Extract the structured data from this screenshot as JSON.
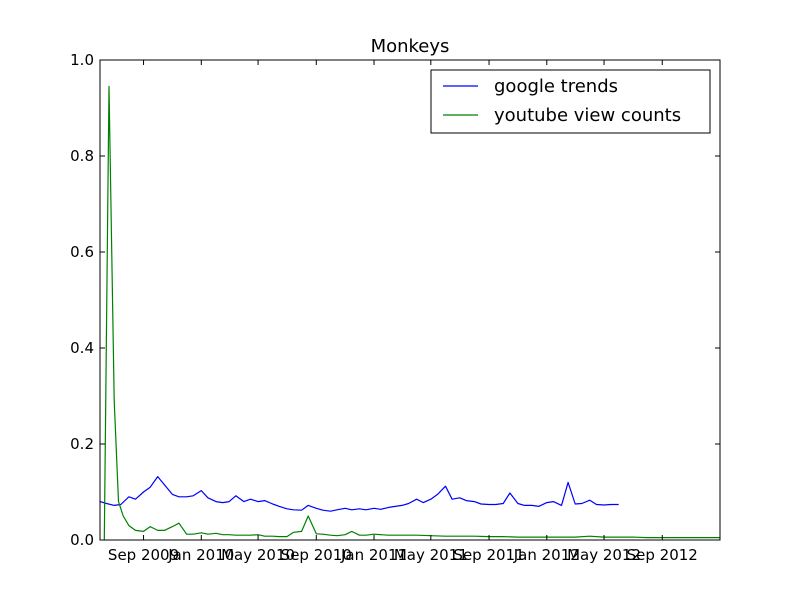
{
  "chart_data": {
    "type": "line",
    "title": "Monkeys",
    "xlabel": "",
    "ylabel": "",
    "x_axis_type": "date",
    "xlim": [
      "2009-06-01",
      "2013-01-01"
    ],
    "ylim": [
      0.0,
      1.0
    ],
    "grid": false,
    "legend_position": "top-right",
    "y_ticks": [
      0.0,
      0.2,
      0.4,
      0.6,
      0.8,
      1.0
    ],
    "y_tick_labels": [
      "0.0",
      "0.2",
      "0.4",
      "0.6",
      "0.8",
      "1.0"
    ],
    "x_ticks": [
      "2009-09-01",
      "2010-01-01",
      "2010-05-01",
      "2010-09-01",
      "2011-01-01",
      "2011-05-01",
      "2011-09-01",
      "2012-01-01",
      "2012-05-01",
      "2012-09-01"
    ],
    "x_tick_labels": [
      "Sep 2009",
      "Jan 2010",
      "May 2010",
      "Sep 2010",
      "Jan 2011",
      "May 2011",
      "Sep 2011",
      "Jan 2012",
      "May 2012",
      "Sep 2012"
    ],
    "series": [
      {
        "name": "google trends",
        "color": "#0000ff",
        "x": [
          "2009-06-01",
          "2009-06-15",
          "2009-07-01",
          "2009-07-15",
          "2009-08-01",
          "2009-08-15",
          "2009-09-01",
          "2009-09-15",
          "2009-10-01",
          "2009-10-15",
          "2009-11-01",
          "2009-11-15",
          "2009-12-01",
          "2009-12-15",
          "2010-01-01",
          "2010-01-15",
          "2010-02-01",
          "2010-02-15",
          "2010-03-01",
          "2010-03-15",
          "2010-04-01",
          "2010-04-15",
          "2010-05-01",
          "2010-05-15",
          "2010-06-01",
          "2010-06-15",
          "2010-07-01",
          "2010-07-15",
          "2010-08-01",
          "2010-08-15",
          "2010-09-01",
          "2010-09-15",
          "2010-10-01",
          "2010-10-15",
          "2010-11-01",
          "2010-11-15",
          "2010-12-01",
          "2010-12-15",
          "2011-01-01",
          "2011-01-15",
          "2011-02-01",
          "2011-02-15",
          "2011-03-01",
          "2011-03-15",
          "2011-04-01",
          "2011-04-15",
          "2011-05-01",
          "2011-05-15",
          "2011-06-01",
          "2011-06-15",
          "2011-07-01",
          "2011-07-15",
          "2011-08-01",
          "2011-08-15",
          "2011-09-01",
          "2011-09-15",
          "2011-10-01",
          "2011-10-15",
          "2011-11-01",
          "2011-11-15",
          "2011-12-01",
          "2011-12-15",
          "2012-01-01",
          "2012-01-15",
          "2012-02-01",
          "2012-02-15",
          "2012-03-01",
          "2012-03-15",
          "2012-04-01",
          "2012-04-15",
          "2012-05-01",
          "2012-05-15",
          "2012-06-01"
        ],
        "values": [
          0.08,
          0.076,
          0.072,
          0.074,
          0.09,
          0.085,
          0.1,
          0.11,
          0.132,
          0.115,
          0.095,
          0.09,
          0.09,
          0.092,
          0.103,
          0.088,
          0.08,
          0.078,
          0.08,
          0.092,
          0.08,
          0.085,
          0.08,
          0.082,
          0.075,
          0.07,
          0.065,
          0.063,
          0.062,
          0.072,
          0.066,
          0.062,
          0.06,
          0.063,
          0.066,
          0.063,
          0.065,
          0.063,
          0.066,
          0.064,
          0.068,
          0.07,
          0.072,
          0.076,
          0.085,
          0.078,
          0.085,
          0.095,
          0.112,
          0.085,
          0.088,
          0.082,
          0.08,
          0.075,
          0.074,
          0.074,
          0.076,
          0.098,
          0.076,
          0.072,
          0.072,
          0.07,
          0.078,
          0.08,
          0.072,
          0.12,
          0.075,
          0.076,
          0.083,
          0.074,
          0.073,
          0.074,
          0.074
        ]
      },
      {
        "name": "youtube view counts",
        "color": "#008000",
        "x": [
          "2009-06-10",
          "2009-06-20",
          "2009-07-01",
          "2009-07-10",
          "2009-07-20",
          "2009-08-01",
          "2009-08-15",
          "2009-09-01",
          "2009-09-15",
          "2009-10-01",
          "2009-10-15",
          "2009-11-01",
          "2009-11-15",
          "2009-12-01",
          "2009-12-15",
          "2010-01-01",
          "2010-01-15",
          "2010-02-01",
          "2010-02-15",
          "2010-03-01",
          "2010-03-15",
          "2010-04-01",
          "2010-04-15",
          "2010-05-01",
          "2010-05-15",
          "2010-06-01",
          "2010-06-15",
          "2010-07-01",
          "2010-07-15",
          "2010-08-01",
          "2010-08-15",
          "2010-09-01",
          "2010-09-15",
          "2010-10-01",
          "2010-10-15",
          "2010-11-01",
          "2010-11-15",
          "2010-12-01",
          "2010-12-15",
          "2011-01-01",
          "2011-02-01",
          "2011-03-01",
          "2011-04-01",
          "2011-05-01",
          "2011-06-01",
          "2011-07-01",
          "2011-08-01",
          "2011-09-01",
          "2011-10-01",
          "2011-11-01",
          "2011-12-01",
          "2012-01-01",
          "2012-02-01",
          "2012-03-01",
          "2012-04-01",
          "2012-05-01",
          "2012-06-01",
          "2012-07-01",
          "2012-08-01",
          "2012-09-01",
          "2012-10-01",
          "2012-11-01",
          "2012-12-01",
          "2013-01-01"
        ],
        "values": [
          0.0,
          0.945,
          0.29,
          0.08,
          0.05,
          0.03,
          0.02,
          0.018,
          0.028,
          0.02,
          0.02,
          0.028,
          0.035,
          0.012,
          0.012,
          0.015,
          0.012,
          0.014,
          0.011,
          0.011,
          0.01,
          0.01,
          0.01,
          0.011,
          0.008,
          0.008,
          0.007,
          0.007,
          0.016,
          0.018,
          0.05,
          0.013,
          0.012,
          0.01,
          0.009,
          0.011,
          0.018,
          0.01,
          0.01,
          0.012,
          0.01,
          0.01,
          0.01,
          0.009,
          0.008,
          0.008,
          0.008,
          0.007,
          0.007,
          0.006,
          0.006,
          0.006,
          0.006,
          0.006,
          0.008,
          0.006,
          0.006,
          0.006,
          0.005,
          0.005,
          0.005,
          0.005,
          0.005,
          0.005
        ]
      }
    ]
  }
}
